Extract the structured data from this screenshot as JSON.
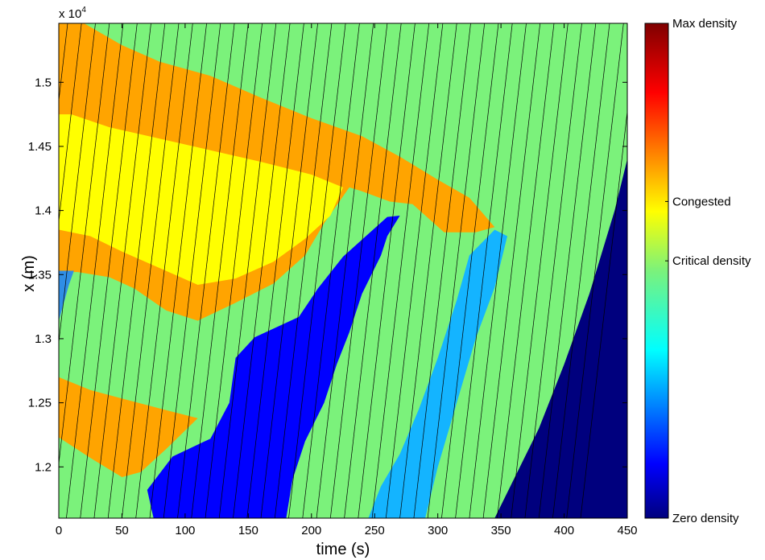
{
  "chart_data": {
    "type": "heatmap",
    "xlabel": "time (s)",
    "ylabel": "x (m)",
    "y_multiplier": "x 10",
    "y_multiplier_exp": "4",
    "xlim": [
      0,
      450
    ],
    "ylim": [
      11600,
      15460
    ],
    "xticks": [
      0,
      50,
      100,
      150,
      200,
      250,
      300,
      350,
      400,
      450
    ],
    "yticks": [
      12000,
      12500,
      13000,
      13500,
      14000,
      14500,
      15000
    ],
    "ytick_labels": [
      "1.2",
      "1.25",
      "1.3",
      "1.35",
      "1.4",
      "1.45",
      "1.5"
    ],
    "grid": false,
    "colormap": "jet",
    "colorbar": {
      "labels": [
        {
          "text": "Max density",
          "level": 1.0
        },
        {
          "text": "Congested",
          "level": 0.64
        },
        {
          "text": "Critical density",
          "level": 0.52
        },
        {
          "text": "Zero density",
          "level": 0.0
        }
      ]
    },
    "regions": [
      {
        "name": "critical",
        "level": 0.52,
        "color": "#7bf27b",
        "polygon": [
          [
            0,
            15460
          ],
          [
            450,
            15460
          ],
          [
            450,
            11600
          ],
          [
            0,
            11600
          ]
        ]
      },
      {
        "name": "orange-upper",
        "level": 0.78,
        "color": "#ffa400",
        "polygon": [
          [
            0,
            15460
          ],
          [
            20,
            15460
          ],
          [
            50,
            15290
          ],
          [
            80,
            15160
          ],
          [
            120,
            15050
          ],
          [
            160,
            14880
          ],
          [
            200,
            14720
          ],
          [
            240,
            14580
          ],
          [
            270,
            14420
          ],
          [
            300,
            14240
          ],
          [
            325,
            14100
          ],
          [
            345,
            13870
          ],
          [
            330,
            13830
          ],
          [
            305,
            13830
          ],
          [
            280,
            14050
          ],
          [
            262,
            14070
          ],
          [
            240,
            14150
          ],
          [
            230,
            14180
          ],
          [
            210,
            13900
          ],
          [
            195,
            13650
          ],
          [
            170,
            13430
          ],
          [
            140,
            13280
          ],
          [
            110,
            13140
          ],
          [
            85,
            13220
          ],
          [
            60,
            13390
          ],
          [
            40,
            13480
          ],
          [
            15,
            13520
          ],
          [
            0,
            13520
          ]
        ]
      },
      {
        "name": "yellow-band",
        "level": 0.68,
        "color": "#ffff00",
        "polygon": [
          [
            0,
            14750
          ],
          [
            10,
            14750
          ],
          [
            40,
            14650
          ],
          [
            80,
            14560
          ],
          [
            120,
            14470
          ],
          [
            160,
            14380
          ],
          [
            200,
            14280
          ],
          [
            225,
            14180
          ],
          [
            215,
            13960
          ],
          [
            195,
            13780
          ],
          [
            170,
            13600
          ],
          [
            140,
            13470
          ],
          [
            110,
            13420
          ],
          [
            80,
            13550
          ],
          [
            50,
            13680
          ],
          [
            25,
            13800
          ],
          [
            0,
            13850
          ]
        ]
      },
      {
        "name": "orange-lower",
        "level": 0.78,
        "color": "#ffa400",
        "polygon": [
          [
            0,
            12700
          ],
          [
            25,
            12600
          ],
          [
            55,
            12520
          ],
          [
            90,
            12430
          ],
          [
            110,
            12380
          ],
          [
            85,
            12140
          ],
          [
            65,
            11960
          ],
          [
            50,
            11920
          ],
          [
            25,
            12070
          ],
          [
            0,
            12230
          ]
        ]
      },
      {
        "name": "blue-left",
        "level": 0.27,
        "color": "#2f8ee6",
        "polygon": [
          [
            0,
            13530
          ],
          [
            12,
            13530
          ],
          [
            8,
            13420
          ],
          [
            0,
            13140
          ]
        ]
      },
      {
        "name": "blue-main",
        "level": 0.08,
        "color": "#0000ff",
        "polygon": [
          [
            75,
            11600
          ],
          [
            70,
            11820
          ],
          [
            90,
            12080
          ],
          [
            120,
            12220
          ],
          [
            135,
            12500
          ],
          [
            140,
            12850
          ],
          [
            155,
            13010
          ],
          [
            190,
            13170
          ],
          [
            205,
            13390
          ],
          [
            225,
            13640
          ],
          [
            260,
            13950
          ],
          [
            270,
            13960
          ],
          [
            260,
            13800
          ],
          [
            255,
            13650
          ],
          [
            240,
            13350
          ],
          [
            230,
            13050
          ],
          [
            220,
            12800
          ],
          [
            210,
            12500
          ],
          [
            195,
            12200
          ],
          [
            185,
            11900
          ],
          [
            180,
            11600
          ]
        ]
      },
      {
        "name": "cyan-strip",
        "level": 0.35,
        "color": "#14b4ff",
        "polygon": [
          [
            245,
            11600
          ],
          [
            255,
            11850
          ],
          [
            270,
            12100
          ],
          [
            285,
            12450
          ],
          [
            300,
            12850
          ],
          [
            315,
            13300
          ],
          [
            325,
            13650
          ],
          [
            345,
            13850
          ],
          [
            355,
            13800
          ],
          [
            345,
            13400
          ],
          [
            330,
            13000
          ],
          [
            315,
            12500
          ],
          [
            300,
            12000
          ],
          [
            290,
            11600
          ]
        ]
      },
      {
        "name": "navy-right",
        "level": 0.0,
        "color": "#00007e",
        "polygon": [
          [
            345,
            11600
          ],
          [
            360,
            11900
          ],
          [
            380,
            12300
          ],
          [
            400,
            12800
          ],
          [
            420,
            13350
          ],
          [
            440,
            14000
          ],
          [
            450,
            14400
          ],
          [
            450,
            11600
          ]
        ]
      }
    ],
    "vehicle_trajectories": {
      "count": 44,
      "spacing_s": 11,
      "color": "#000000"
    }
  }
}
